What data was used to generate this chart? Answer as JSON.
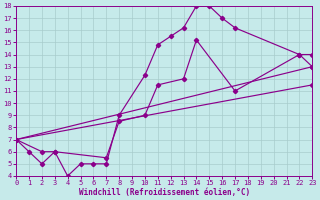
{
  "bg_color": "#c6eaea",
  "grid_color": "#a8cccc",
  "line_color": "#8b008b",
  "xlabel": "Windchill (Refroidissement éolien,°C)",
  "xlim": [
    0,
    23
  ],
  "ylim": [
    4,
    18
  ],
  "xticks": [
    0,
    1,
    2,
    3,
    4,
    5,
    6,
    7,
    8,
    9,
    10,
    11,
    12,
    13,
    14,
    15,
    16,
    17,
    18,
    19,
    20,
    21,
    22,
    23
  ],
  "yticks": [
    4,
    5,
    6,
    7,
    8,
    9,
    10,
    11,
    12,
    13,
    14,
    15,
    16,
    17,
    18
  ],
  "series": [
    {
      "x": [
        0,
        1,
        2,
        3,
        4,
        5,
        6,
        7,
        8,
        10,
        11,
        12,
        13,
        14,
        15,
        16,
        17,
        22,
        23
      ],
      "y": [
        7,
        6,
        5,
        6,
        4,
        5,
        5,
        5,
        9.0,
        12.3,
        14.8,
        15.5,
        16.2,
        18.0,
        18.0,
        17.0,
        16.2,
        14.0,
        13.0
      ]
    },
    {
      "x": [
        0,
        2,
        3,
        7,
        8,
        10,
        11,
        13,
        14,
        17,
        22,
        23
      ],
      "y": [
        7,
        6,
        6,
        5.5,
        8.5,
        9.0,
        11.5,
        12.0,
        15.2,
        11.0,
        14.0,
        14.0
      ]
    },
    {
      "x": [
        0,
        23
      ],
      "y": [
        7,
        13.0
      ]
    },
    {
      "x": [
        0,
        23
      ],
      "y": [
        7,
        11.5
      ]
    }
  ]
}
